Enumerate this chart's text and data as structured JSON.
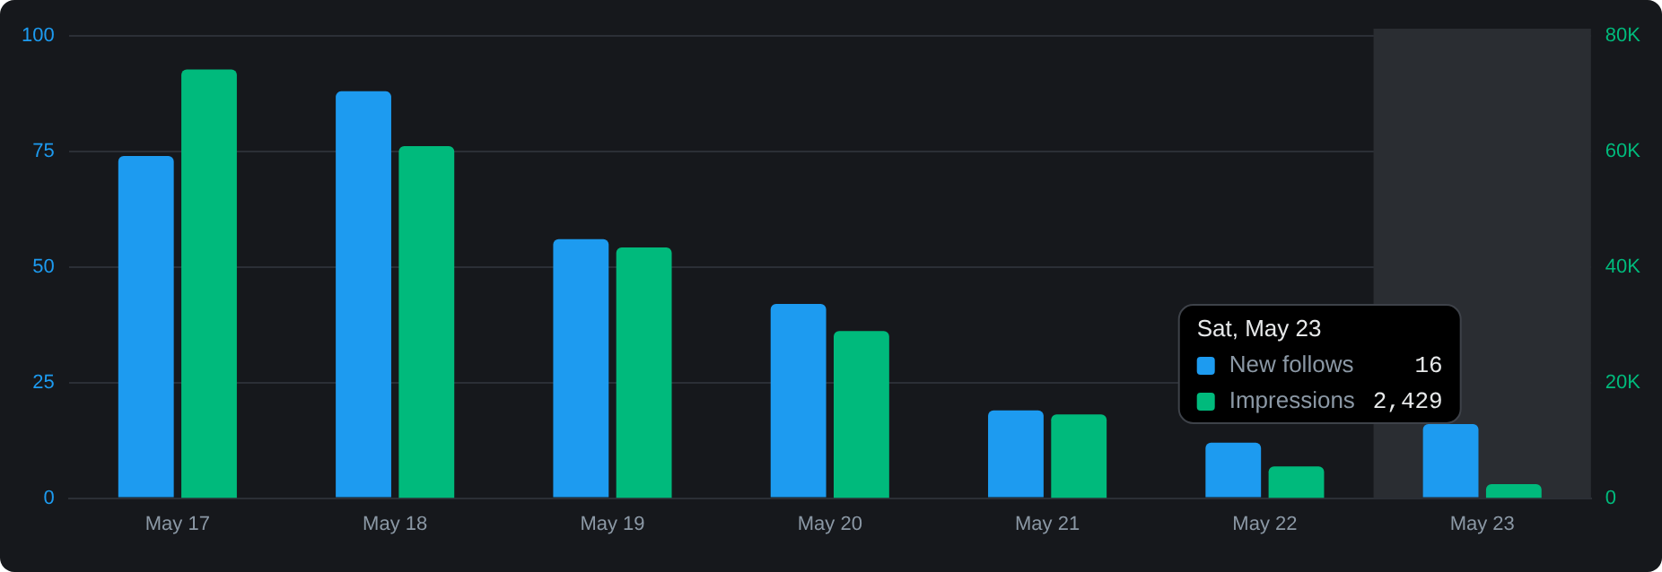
{
  "chart_data": {
    "type": "bar",
    "categories": [
      "May 17",
      "May 18",
      "May 19",
      "May 20",
      "May 21",
      "May 22",
      "May 23"
    ],
    "series": [
      {
        "name": "New follows",
        "color": "#1d9bf0",
        "values": [
          74,
          88,
          56,
          42,
          19,
          12,
          16
        ]
      },
      {
        "name": "Impressions",
        "color": "#00ba7c",
        "axis": "y2",
        "values": [
          74200,
          60900,
          43400,
          28900,
          14500,
          5500,
          2429
        ]
      }
    ],
    "ylim": [
      0,
      100
    ],
    "yticks": [
      0,
      25,
      50,
      75,
      100
    ],
    "y2lim": [
      0,
      80000
    ],
    "y2ticks": [
      {
        "value": 0,
        "label": "0"
      },
      {
        "value": 20000,
        "label": "20K"
      },
      {
        "value": 40000,
        "label": "40K"
      },
      {
        "value": 60000,
        "label": "60K"
      },
      {
        "value": 80000,
        "label": "80K"
      }
    ],
    "grid": "y",
    "legend": "right",
    "bands": [
      {
        "axis": "x",
        "from": "May 23",
        "to": "May 23",
        "color": "#2a2d32"
      }
    ],
    "annotations": [
      "Sat, May 23",
      "16",
      "2,429"
    ]
  }
}
